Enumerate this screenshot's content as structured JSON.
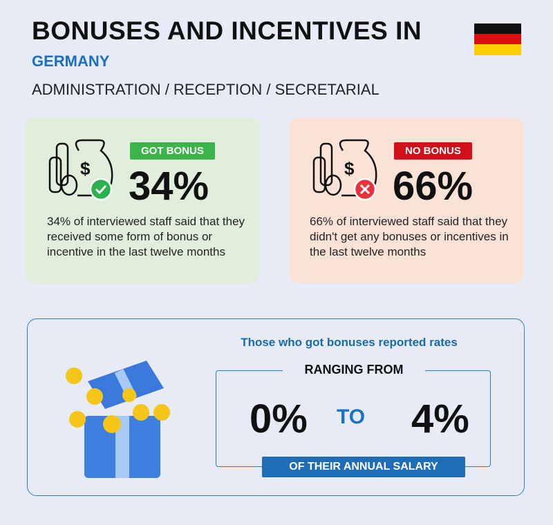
{
  "header": {
    "title": "BONUSES AND INCENTIVES IN",
    "country": "GERMANY",
    "category": "ADMINISTRATION / RECEPTION / SECRETARIAL"
  },
  "cards": [
    {
      "badge": "GOT BONUS",
      "percent": "34%",
      "description": "34% of interviewed staff said that they received some form of bonus or incentive in the last twelve months"
    },
    {
      "badge": "NO BONUS",
      "percent": "66%",
      "description": "66% of interviewed staff said that they didn't get any bonuses or incentives in the last twelve months"
    }
  ],
  "range": {
    "intro": "Those who got bonuses reported rates",
    "label": "RANGING FROM",
    "from": "0%",
    "connector": "TO",
    "to": "4%",
    "footer": "OF THEIR ANNUAL SALARY"
  }
}
